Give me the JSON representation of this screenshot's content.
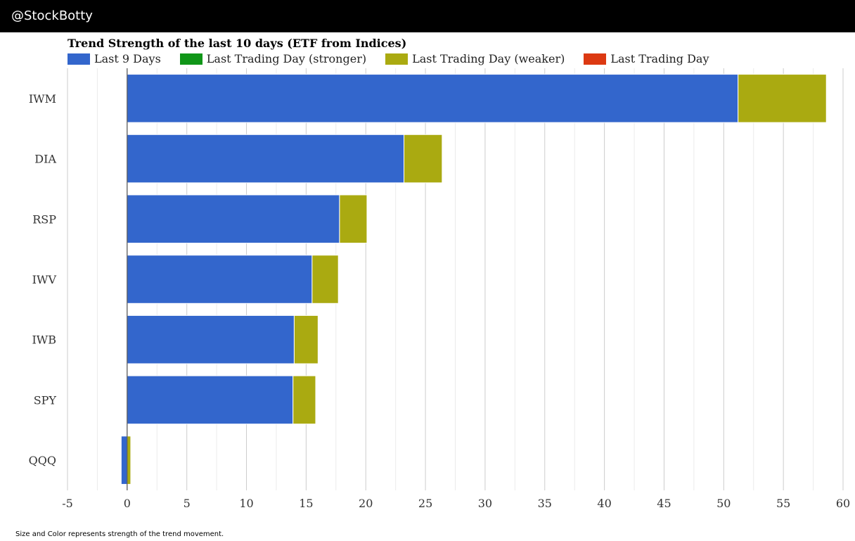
{
  "header": {
    "brand": "@StockBotty"
  },
  "footer": {
    "note": "Size and Color represents strength of the trend movement."
  },
  "colors": {
    "last9": "#3366cc",
    "stronger": "#109618",
    "weaker": "#aaaa11",
    "last_day": "#dc3912"
  },
  "chart_data": {
    "type": "bar",
    "orientation": "horizontal",
    "stacked": true,
    "title": "Trend Strength of the last 10 days (ETF from Indices)",
    "xlabel": "",
    "ylabel": "",
    "xlim": [
      -5,
      60
    ],
    "xticks": [
      -5,
      0,
      5,
      10,
      15,
      20,
      25,
      30,
      35,
      40,
      45,
      50,
      55,
      60
    ],
    "grid": true,
    "legend_position": "top-left",
    "legend": [
      {
        "name": "Last 9 Days",
        "color": "#3366cc"
      },
      {
        "name": "Last Trading Day (stronger)",
        "color": "#109618"
      },
      {
        "name": "Last Trading Day (weaker)",
        "color": "#aaaa11"
      },
      {
        "name": "Last Trading Day",
        "color": "#dc3912"
      }
    ],
    "categories": [
      "IWM",
      "DIA",
      "RSP",
      "IWV",
      "IWB",
      "SPY",
      "QQQ"
    ],
    "series": [
      {
        "name": "Last 9 Days",
        "color": "#3366cc",
        "start": [
          0,
          0,
          0,
          0,
          0,
          0,
          -0.5
        ],
        "end": [
          51.2,
          23.2,
          17.8,
          15.5,
          14.0,
          13.9,
          0
        ]
      },
      {
        "name": "Last Trading Day (weaker)",
        "color": "#aaaa11",
        "start": [
          51.2,
          23.2,
          17.8,
          15.5,
          14.0,
          13.9,
          0
        ],
        "end": [
          58.6,
          26.4,
          20.1,
          17.7,
          16.0,
          15.8,
          0.3
        ]
      }
    ]
  }
}
